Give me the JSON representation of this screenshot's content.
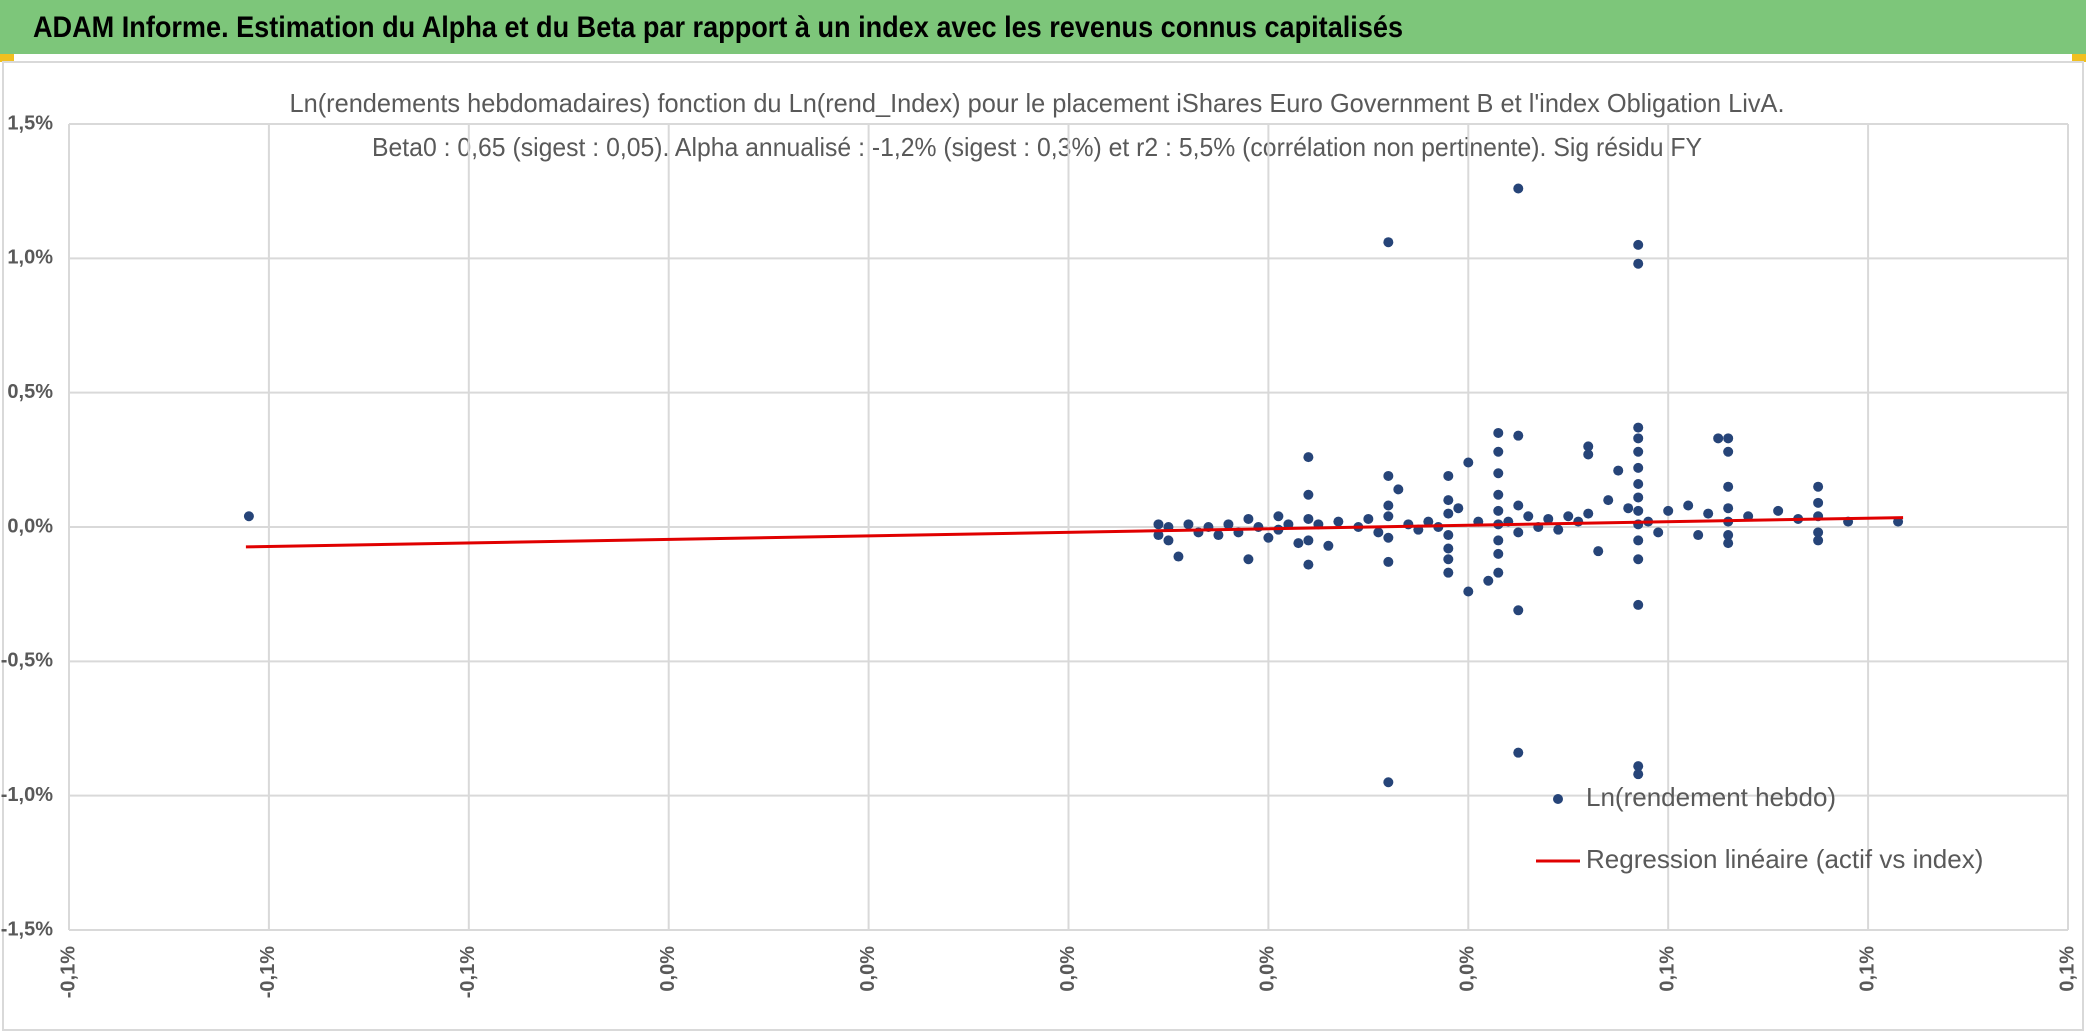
{
  "header": {
    "title": "ADAM Informe. Estimation du Alpha et du Beta par rapport à un index avec les revenus connus capitalisés"
  },
  "chart_data": {
    "type": "scatter",
    "title": "Ln(rendements hebdomadaires) fonction du Ln(rend_Index) pour le placement iShares Euro Government B et l'index Obligation LivA.",
    "subtitle": "Beta0 : 0,65 (sigest : 0,05). Alpha annualisé : -1,2% (sigest : 0,3%) et r2 : 5,5% (corrélation non pertinente). Sig résidu FY",
    "xlim": [
      -0.1,
      0.1
    ],
    "xticks": [
      {
        "value": -0.1,
        "label": "-0,1%"
      },
      {
        "value": -0.08,
        "label": "-0,1%"
      },
      {
        "value": -0.06,
        "label": "-0,1%"
      },
      {
        "value": -0.04,
        "label": "0,0%"
      },
      {
        "value": -0.02,
        "label": "0,0%"
      },
      {
        "value": 0,
        "label": "0,0%"
      },
      {
        "value": 0.02,
        "label": "0,0%"
      },
      {
        "value": 0.04,
        "label": "0,0%"
      },
      {
        "value": 0.06,
        "label": "0,1%"
      },
      {
        "value": 0.08,
        "label": "0,1%"
      },
      {
        "value": 0.1,
        "label": "0,1%"
      }
    ],
    "ylim": [
      -1.5,
      1.5
    ],
    "yticks": [
      {
        "value": -1.5,
        "label": "-1,5%"
      },
      {
        "value": -1,
        "label": "-1,0%"
      },
      {
        "value": -0.5,
        "label": "-0,5%"
      },
      {
        "value": 0,
        "label": "0,0%"
      },
      {
        "value": 0.5,
        "label": "0,5%"
      },
      {
        "value": 1,
        "label": "1,0%"
      },
      {
        "value": 1.5,
        "label": "1,5%"
      }
    ],
    "grid": true,
    "legend": "bottom-right",
    "series": [
      {
        "name": "Ln(rendement hebdo)",
        "color": "#264478",
        "style": "markers",
        "x": [
          -0.082,
          0.009,
          0.009,
          0.01,
          0.01,
          0.011,
          0.012,
          0.013,
          0.014,
          0.015,
          0.016,
          0.017,
          0.018,
          0.018,
          0.019,
          0.02,
          0.021,
          0.021,
          0.022,
          0.023,
          0.024,
          0.024,
          0.024,
          0.024,
          0.024,
          0.025,
          0.026,
          0.027,
          0.029,
          0.03,
          0.031,
          0.032,
          0.032,
          0.032,
          0.032,
          0.032,
          0.032,
          0.032,
          0.033,
          0.034,
          0.035,
          0.036,
          0.037,
          0.038,
          0.038,
          0.038,
          0.038,
          0.038,
          0.038,
          0.038,
          0.039,
          0.04,
          0.04,
          0.041,
          0.042,
          0.043,
          0.043,
          0.043,
          0.043,
          0.043,
          0.043,
          0.043,
          0.043,
          0.043,
          0.044,
          0.045,
          0.045,
          0.045,
          0.045,
          0.045,
          0.045,
          0.046,
          0.047,
          0.048,
          0.049,
          0.05,
          0.051,
          0.052,
          0.052,
          0.052,
          0.053,
          0.054,
          0.055,
          0.056,
          0.057,
          0.057,
          0.057,
          0.057,
          0.057,
          0.057,
          0.057,
          0.057,
          0.057,
          0.057,
          0.057,
          0.057,
          0.057,
          0.057,
          0.057,
          0.058,
          0.059,
          0.06,
          0.062,
          0.063,
          0.064,
          0.065,
          0.066,
          0.066,
          0.066,
          0.066,
          0.066,
          0.066,
          0.066,
          0.068,
          0.071,
          0.073,
          0.075,
          0.075,
          0.075,
          0.075,
          0.075,
          0.078,
          0.083
        ],
        "y": [
          0.04,
          0.01,
          -0.03,
          -0.05,
          0.0,
          -0.11,
          0.01,
          -0.02,
          0.0,
          -0.03,
          0.01,
          -0.02,
          0.03,
          -0.12,
          0.0,
          -0.04,
          0.04,
          -0.01,
          0.01,
          -0.06,
          0.26,
          0.12,
          0.03,
          -0.14,
          -0.05,
          0.01,
          -0.07,
          0.02,
          0.0,
          0.03,
          -0.02,
          1.06,
          0.19,
          0.08,
          0.04,
          -0.04,
          -0.13,
          -0.95,
          0.14,
          0.01,
          -0.01,
          0.02,
          0.0,
          0.19,
          0.1,
          0.05,
          -0.03,
          -0.08,
          -0.12,
          -0.17,
          0.07,
          0.24,
          -0.24,
          0.02,
          -0.2,
          0.35,
          0.28,
          0.2,
          0.12,
          0.06,
          0.01,
          -0.05,
          -0.1,
          -0.17,
          0.02,
          1.26,
          0.34,
          0.08,
          -0.02,
          -0.31,
          -0.84,
          0.04,
          0.0,
          0.03,
          -0.01,
          0.04,
          0.02,
          0.3,
          0.27,
          0.05,
          -0.09,
          0.1,
          0.21,
          0.07,
          1.05,
          0.98,
          0.37,
          0.33,
          0.28,
          0.22,
          0.16,
          0.11,
          0.06,
          0.01,
          -0.05,
          -0.12,
          -0.29,
          -0.89,
          -0.92,
          0.02,
          -0.02,
          0.06,
          0.08,
          -0.03,
          0.05,
          0.33,
          0.33,
          0.28,
          0.15,
          0.07,
          0.02,
          -0.03,
          -0.06,
          0.04,
          0.06,
          0.03,
          0.15,
          0.09,
          0.04,
          -0.02,
          -0.05,
          0.02,
          0.02
        ]
      },
      {
        "name": "Regression linéaire (actif vs index)",
        "color": "#e00000",
        "style": "line",
        "x": [
          -0.0823,
          0.0835
        ],
        "y": [
          -0.074,
          0.035
        ]
      }
    ]
  }
}
